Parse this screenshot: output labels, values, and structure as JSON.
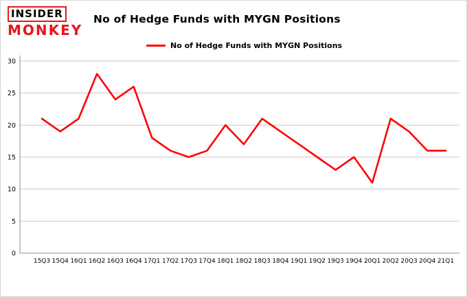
{
  "logo": {
    "line1": "INSIDER",
    "line2": "MONKEY"
  },
  "title": "No of Hedge Funds with MYGN Positions",
  "legend": {
    "label": "No of Hedge Funds with MYGN Positions",
    "color": "#ff0000"
  },
  "chart_data": {
    "type": "line",
    "title": "No of Hedge Funds with MYGN Positions",
    "categories": [
      "15Q3",
      "15Q4",
      "16Q1",
      "16Q2",
      "16Q3",
      "16Q4",
      "17Q1",
      "17Q2",
      "17Q3",
      "17Q4",
      "18Q1",
      "18Q2",
      "18Q3",
      "18Q4",
      "19Q1",
      "19Q2",
      "19Q3",
      "19Q4",
      "20Q1",
      "20Q2",
      "20Q3",
      "20Q4",
      "21Q1"
    ],
    "values": [
      21,
      19,
      21,
      28,
      24,
      26,
      18,
      16,
      15,
      16,
      20,
      17,
      21,
      19,
      17,
      15,
      13,
      15,
      11,
      21,
      19,
      16,
      16
    ],
    "xlabel": "",
    "ylabel": "",
    "ylim": [
      0,
      30
    ],
    "yticks": [
      0,
      5,
      10,
      15,
      20,
      25,
      30
    ],
    "grid": true,
    "legend_position": "top",
    "line_color": "#ff0000",
    "grid_color": "#c6c6c6",
    "axis_color": "#8a8a8a"
  }
}
